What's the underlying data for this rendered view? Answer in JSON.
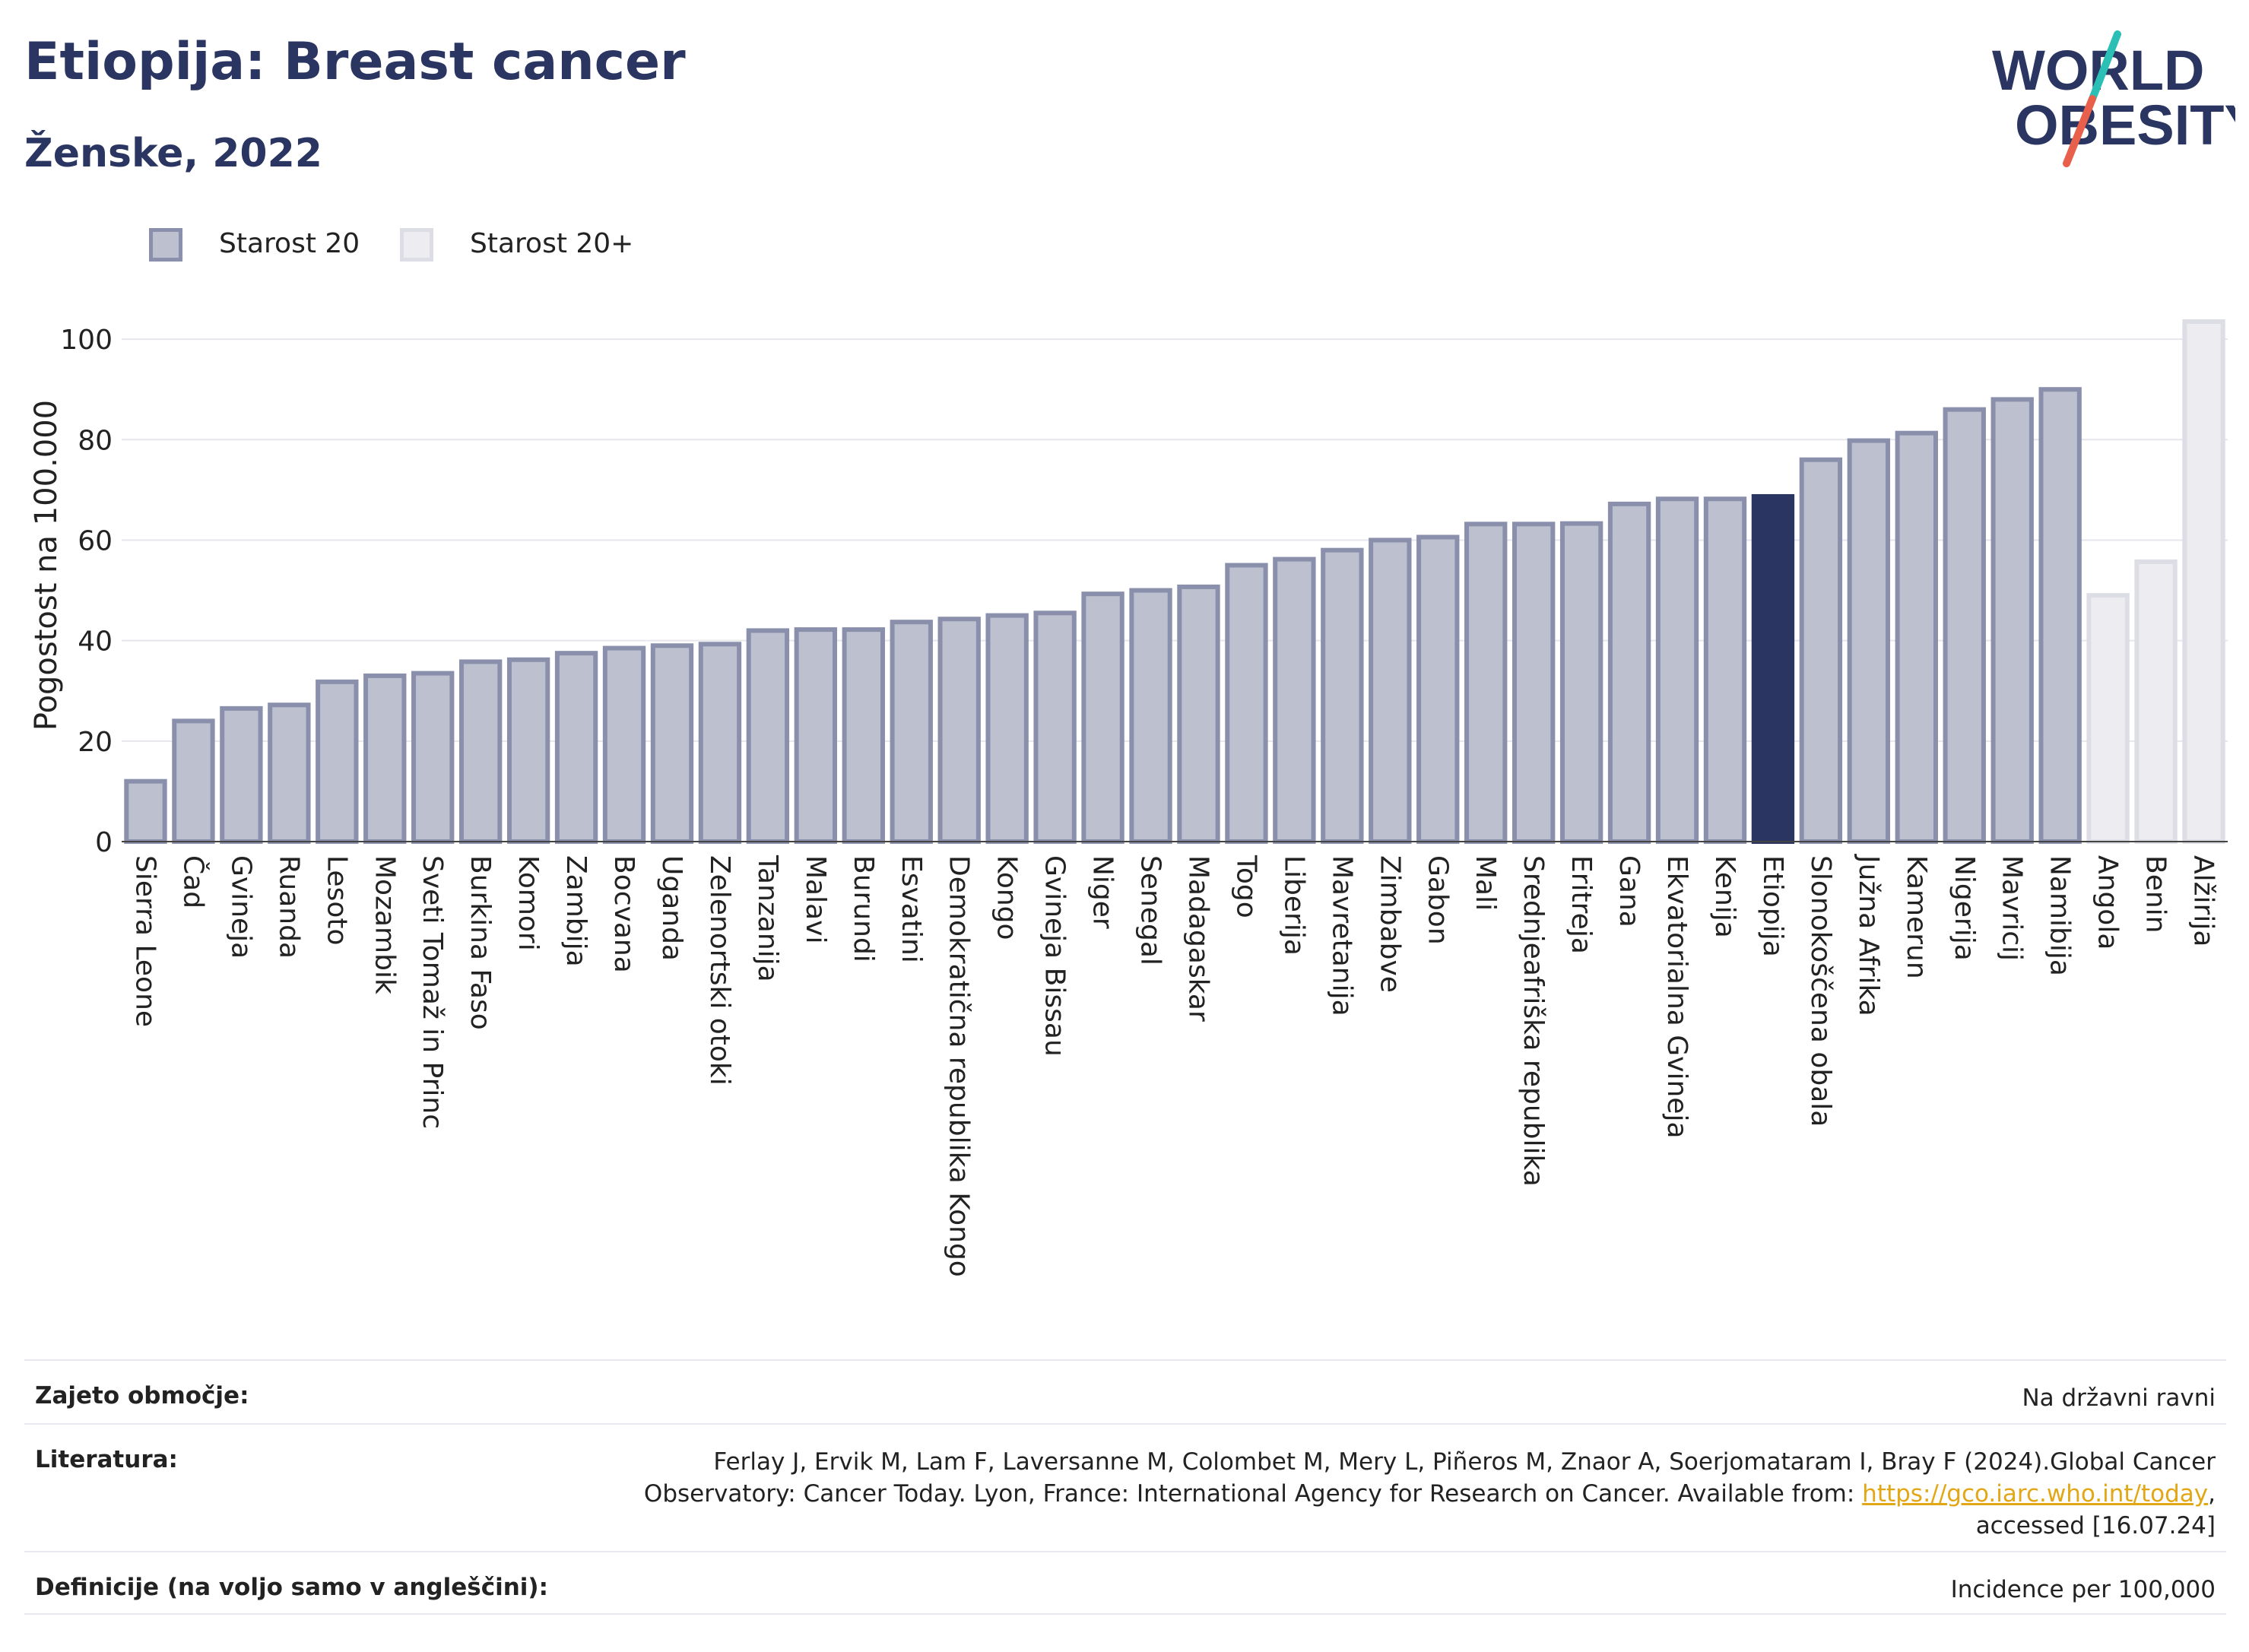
{
  "header": {
    "title": "Etiopija: Breast cancer",
    "subtitle": "Ženske, 2022"
  },
  "logo": {
    "line1": "WORLD",
    "line2": "OBESITY",
    "accent_colors": [
      "#2bbfb6",
      "#e8604c"
    ]
  },
  "legend": [
    {
      "label": "Starost 20",
      "color": "#bcc0cf",
      "border": "#8a90ab"
    },
    {
      "label": "Starost 20+",
      "color": "#ececf1",
      "border": "#dcdde5"
    }
  ],
  "chart_data": {
    "type": "bar",
    "ylabel": "Pogostost na 100.000",
    "ylim": [
      0,
      110
    ],
    "yticks": [
      0,
      20,
      40,
      60,
      80,
      100
    ],
    "grid": true,
    "highlight": "Etiopija",
    "highlight_color": "#2a3561",
    "categories": [
      "Sierra Leone",
      "Čad",
      "Gvineja",
      "Ruanda",
      "Lesoto",
      "Mozambik",
      "Sveti Tomaž in Princ",
      "Burkina Faso",
      "Komori",
      "Zambija",
      "Bocvana",
      "Uganda",
      "Zelenortski otoki",
      "Tanzanija",
      "Malavi",
      "Burundi",
      "Esvatini",
      "Demokratična republika Kongo",
      "Kongo",
      "Gvineja Bissau",
      "Niger",
      "Senegal",
      "Madagaskar",
      "Togo",
      "Liberija",
      "Mavretanija",
      "Zimbabve",
      "Gabon",
      "Mali",
      "Srednjeafriška republika",
      "Eritreja",
      "Gana",
      "Ekvatorialna Gvineja",
      "Kenija",
      "Etiopija",
      "Slonokoščena obala",
      "Južna Afrika",
      "Kamerun",
      "Nigerija",
      "Mavricij",
      "Namibija",
      "Angola",
      "Benin",
      "Alžirija"
    ],
    "values": [
      12,
      24,
      26.5,
      27.2,
      31.8,
      33,
      33.5,
      35.8,
      36.2,
      37.5,
      38.5,
      39,
      39.3,
      42,
      42.2,
      42.2,
      43.7,
      44.3,
      45,
      45.5,
      49.3,
      50,
      50.7,
      55,
      56.2,
      58,
      60,
      60.6,
      63.2,
      63.2,
      63.3,
      67.2,
      68.2,
      68.2,
      68.7,
      76,
      79.8,
      81.3,
      86,
      88,
      90,
      49,
      55.7,
      103.5
    ],
    "series_by_category": [
      "Starost 20",
      "Starost 20",
      "Starost 20",
      "Starost 20",
      "Starost 20",
      "Starost 20",
      "Starost 20",
      "Starost 20",
      "Starost 20",
      "Starost 20",
      "Starost 20",
      "Starost 20",
      "Starost 20",
      "Starost 20",
      "Starost 20",
      "Starost 20",
      "Starost 20",
      "Starost 20",
      "Starost 20",
      "Starost 20",
      "Starost 20",
      "Starost 20",
      "Starost 20",
      "Starost 20",
      "Starost 20",
      "Starost 20",
      "Starost 20",
      "Starost 20",
      "Starost 20",
      "Starost 20",
      "Starost 20",
      "Starost 20",
      "Starost 20",
      "Starost 20",
      "Starost 20",
      "Starost 20",
      "Starost 20",
      "Starost 20",
      "Starost 20",
      "Starost 20",
      "Starost 20",
      "Starost 20+",
      "Starost 20+",
      "Starost 20+"
    ]
  },
  "footer": {
    "coverage_label": "Zajeto območje:",
    "coverage_value": "Na državni ravni",
    "literature_label": "Literatura:",
    "literature_line1": "Ferlay J, Ervik M, Lam F, Laversanne M, Colombet M, Mery L, Piñeros M, Znaor A, Soerjomataram I, Bray F (2024).Global Cancer",
    "literature_line2_prefix": "Observatory: Cancer Today. Lyon, France: International Agency for Research on Cancer. Available from: ",
    "literature_link": "https://gco.iarc.who.int/today",
    "literature_line2_suffix": ",",
    "literature_line3": "accessed [16.07.24]",
    "definitions_label": "Definicije (na voljo samo v angleščini):",
    "definitions_value": "Incidence per 100,000"
  }
}
